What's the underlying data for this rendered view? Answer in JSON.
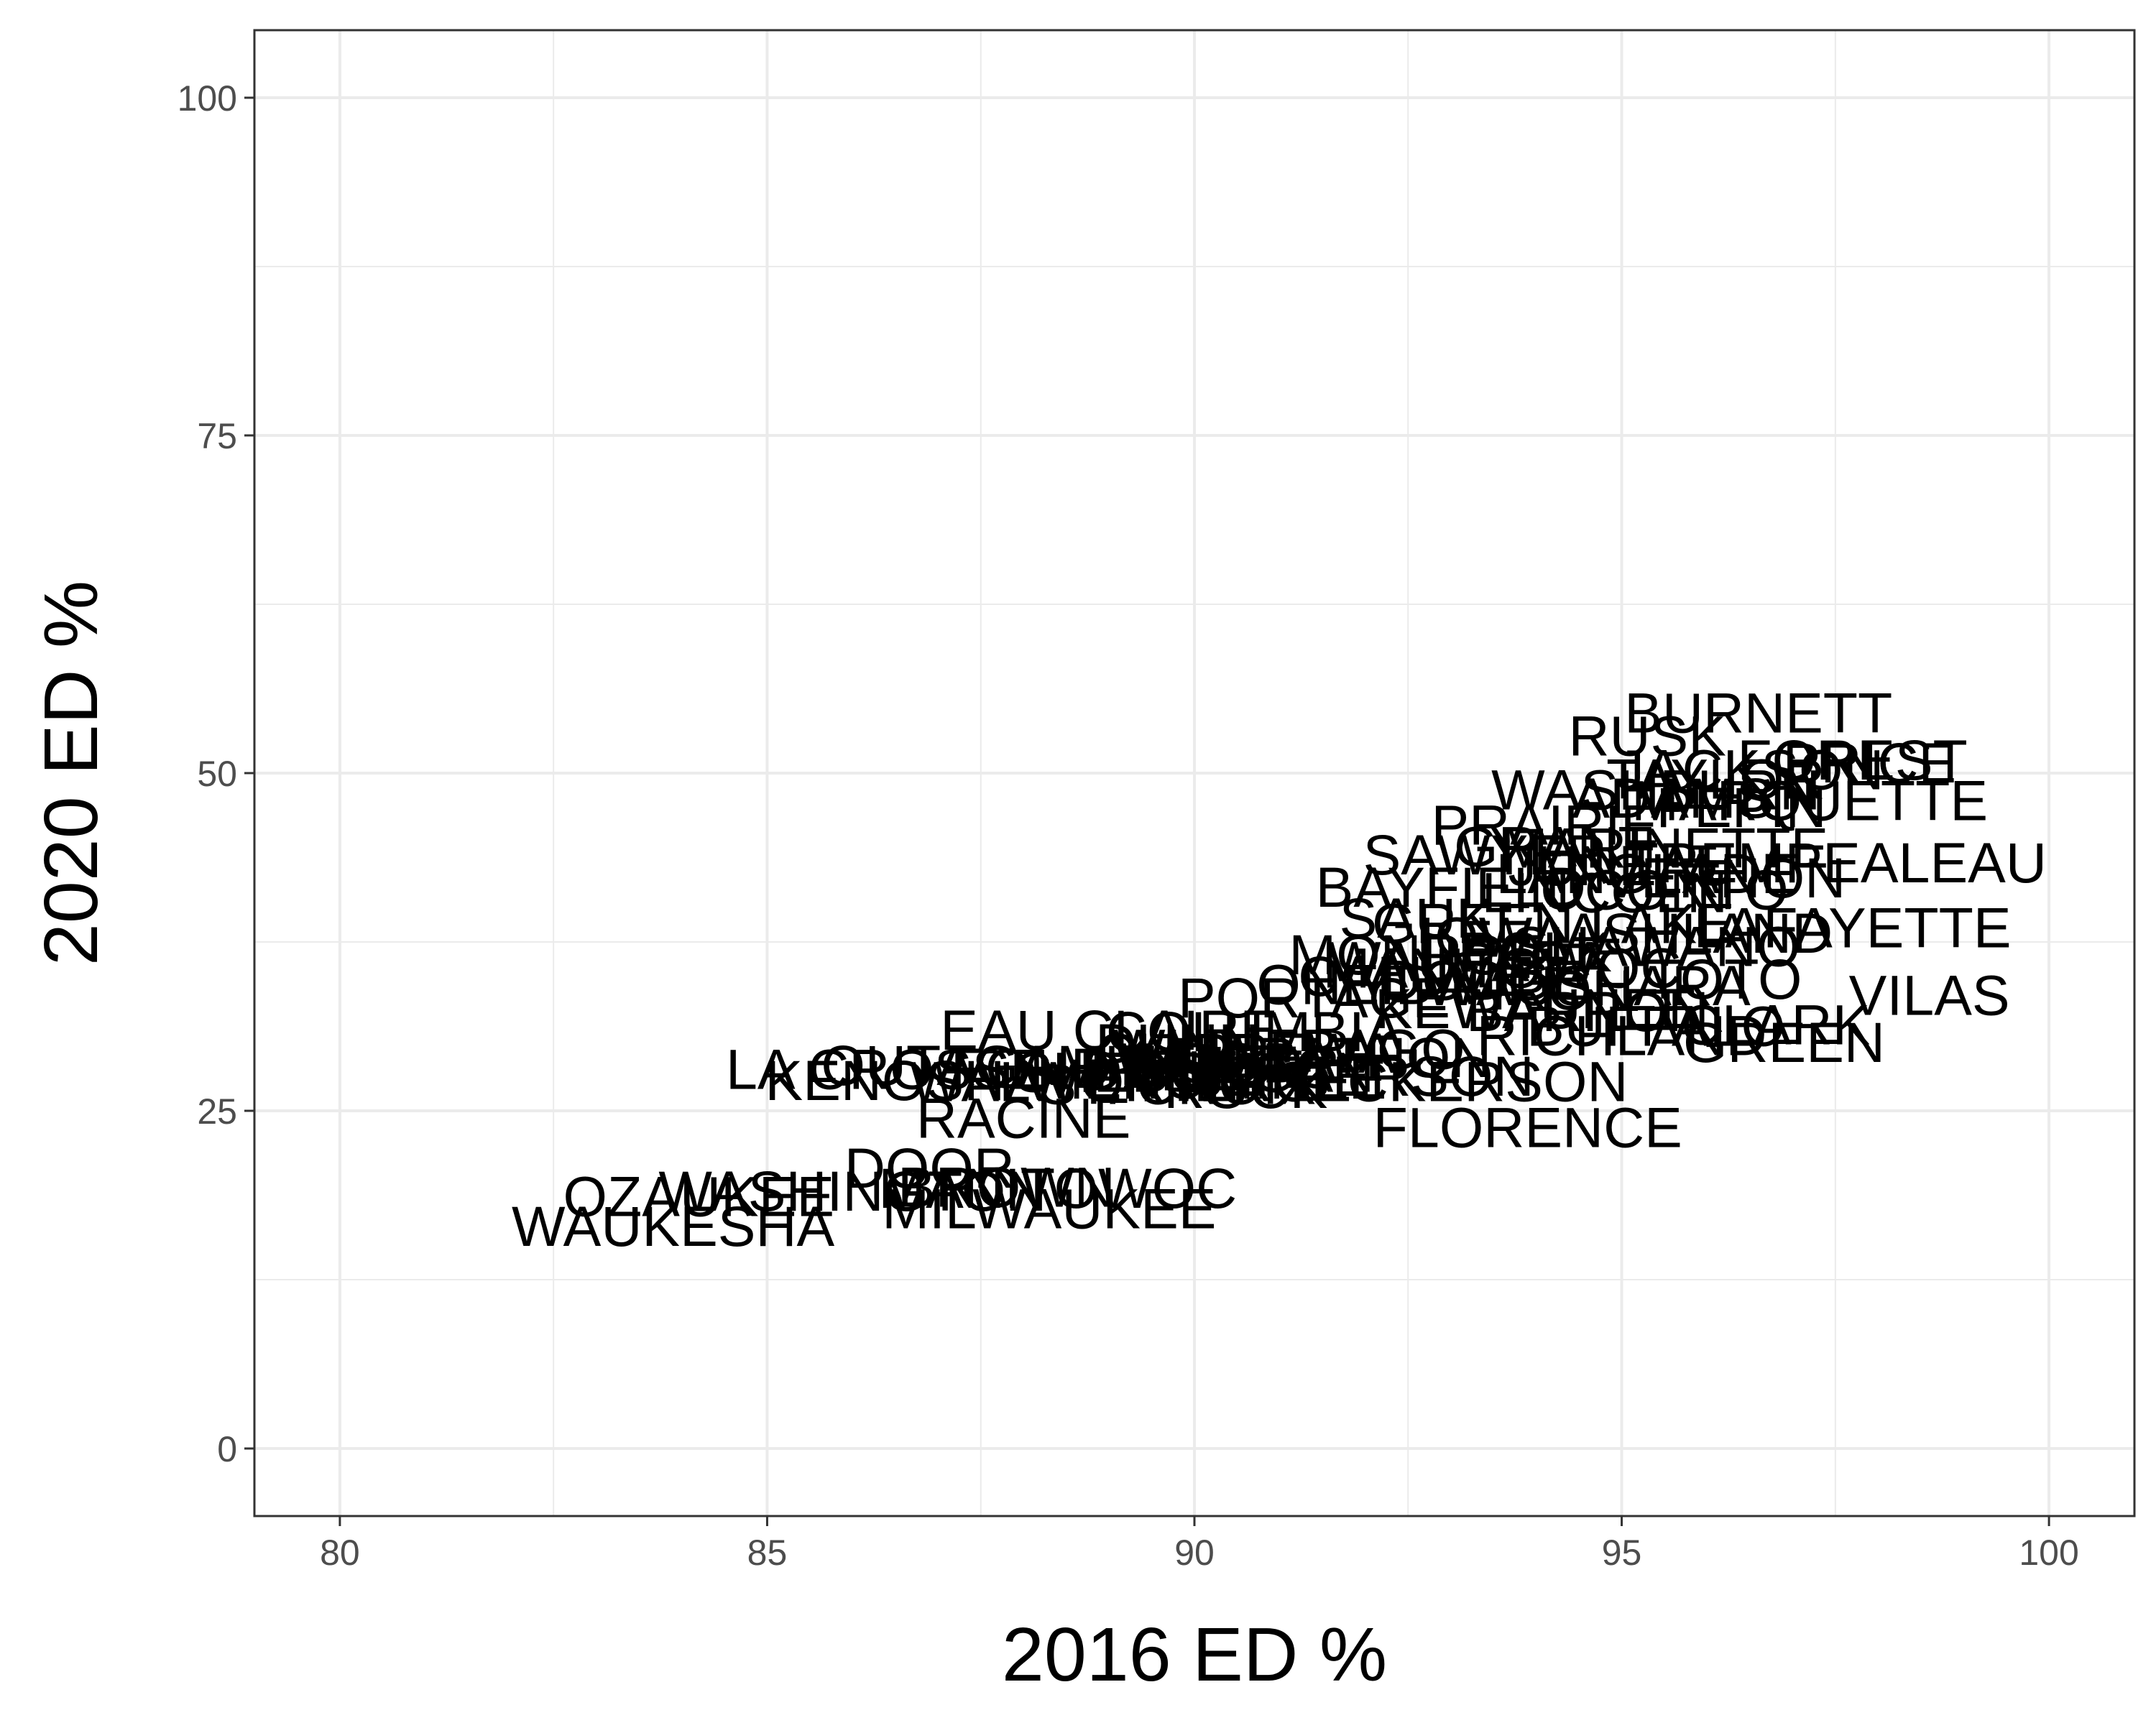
{
  "chart_data": {
    "type": "scatter",
    "mark": "text-labels",
    "xlabel": "2016 ED %",
    "ylabel": "2020 ED %",
    "xlim": [
      79,
      101
    ],
    "ylim": [
      -5,
      105
    ],
    "xticks": [
      80,
      85,
      90,
      95,
      100
    ],
    "yticks": [
      0,
      25,
      50,
      75,
      100
    ],
    "grid": true,
    "colors": {
      "background": "#ffffff",
      "grid": "#ebebeb",
      "panel_border": "#333333",
      "tick_label": "#4d4d4d",
      "text": "#000000"
    },
    "points": [
      {
        "label": "BURNETT",
        "x": 96.6,
        "y": 54.5
      },
      {
        "label": "RUSK",
        "x": 95.3,
        "y": 52.8
      },
      {
        "label": "FOREST",
        "x": 97.7,
        "y": 51.0
      },
      {
        "label": "PRICE",
        "x": 97.9,
        "y": 50.8
      },
      {
        "label": "JACKSON",
        "x": 96.5,
        "y": 50.3
      },
      {
        "label": "TAYLOR",
        "x": 96.1,
        "y": 49.6
      },
      {
        "label": "WASHBURN",
        "x": 95.4,
        "y": 48.8
      },
      {
        "label": "MARQUETTE",
        "x": 97.2,
        "y": 48.0
      },
      {
        "label": "ADAMS",
        "x": 95.6,
        "y": 48.2
      },
      {
        "label": "PEPIN",
        "x": 96.4,
        "y": 47.5
      },
      {
        "label": "PRAIRIE",
        "x": 94.1,
        "y": 46.2
      },
      {
        "label": "SAWYER",
        "x": 93.4,
        "y": 44.0
      },
      {
        "label": "MARINETTE",
        "x": 95.5,
        "y": 44.5
      },
      {
        "label": "GRANT",
        "x": 94.2,
        "y": 44.6
      },
      {
        "label": "JUNEAU",
        "x": 95.0,
        "y": 43.2
      },
      {
        "label": "LANGLADE",
        "x": 95.3,
        "y": 42.6
      },
      {
        "label": "TREMPEALEAU",
        "x": 97.5,
        "y": 43.4
      },
      {
        "label": "VERNON",
        "x": 96.2,
        "y": 42.3
      },
      {
        "label": "BAYFIELD",
        "x": 93.0,
        "y": 41.6
      },
      {
        "label": "LINCOLN",
        "x": 94.8,
        "y": 41.2
      },
      {
        "label": "OCONTO",
        "x": 95.5,
        "y": 41.4
      },
      {
        "label": "SAUK",
        "x": 92.6,
        "y": 39.3
      },
      {
        "label": "GREEN LAKE",
        "x": 94.2,
        "y": 38.9
      },
      {
        "label": "LAFAYETTE",
        "x": 97.7,
        "y": 38.6
      },
      {
        "label": "ASHLAND",
        "x": 95.9,
        "y": 38.2
      },
      {
        "label": "IOWA",
        "x": 93.5,
        "y": 37.9
      },
      {
        "label": "SHAWANO",
        "x": 95.4,
        "y": 37.2
      },
      {
        "label": "POLK",
        "x": 94.0,
        "y": 36.8
      },
      {
        "label": "MONROE",
        "x": 92.6,
        "y": 36.6
      },
      {
        "label": "WAUPACA",
        "x": 93.2,
        "y": 36.1
      },
      {
        "label": "MANITOWOC",
        "x": 93.6,
        "y": 35.6
      },
      {
        "label": "CALUMET",
        "x": 92.8,
        "y": 35.0
      },
      {
        "label": "DODGE",
        "x": 93.4,
        "y": 34.7
      },
      {
        "label": "WAUSHARA",
        "x": 94.6,
        "y": 34.3
      },
      {
        "label": "ONEIDA",
        "x": 92.0,
        "y": 34.4
      },
      {
        "label": "IRON",
        "x": 94.3,
        "y": 34.0
      },
      {
        "label": "PORTAGE",
        "x": 91.4,
        "y": 33.4
      },
      {
        "label": "KEWAUNEE",
        "x": 94.0,
        "y": 32.6
      },
      {
        "label": "BARRON",
        "x": 94.6,
        "y": 32.4
      },
      {
        "label": "TOTO",
        "x": 96.2,
        "y": 34.8
      },
      {
        "label": "VILAS",
        "x": 98.6,
        "y": 33.6
      },
      {
        "label": "BUFFALO",
        "x": 95.4,
        "y": 31.3
      },
      {
        "label": "CLARK",
        "x": 96.8,
        "y": 31.4
      },
      {
        "label": "RICHLAND",
        "x": 95.0,
        "y": 30.6
      },
      {
        "label": "GREEN",
        "x": 96.9,
        "y": 30.1
      },
      {
        "label": "EAU CLAIRE",
        "x": 89.0,
        "y": 31.0
      },
      {
        "label": "COLUMBIA",
        "x": 90.7,
        "y": 30.9
      },
      {
        "label": "DUNN",
        "x": 89.8,
        "y": 30.0
      },
      {
        "label": "WINNEBAGO",
        "x": 91.1,
        "y": 29.6
      },
      {
        "label": "CHIPPEWA",
        "x": 90.6,
        "y": 29.3
      },
      {
        "label": "MARATHON",
        "x": 91.6,
        "y": 29.0
      },
      {
        "label": "WOOD",
        "x": 90.2,
        "y": 28.6
      },
      {
        "label": "LA CROSSE",
        "x": 86.4,
        "y": 28.1
      },
      {
        "label": "OUTAGAMIE",
        "x": 87.6,
        "y": 28.4
      },
      {
        "label": "FOND DU LAC",
        "x": 89.4,
        "y": 28.2
      },
      {
        "label": "SHEBOYGAN",
        "x": 90.0,
        "y": 27.9
      },
      {
        "label": "DANE",
        "x": 89.6,
        "y": 28.0
      },
      {
        "label": "JEFFERSON",
        "x": 92.0,
        "y": 27.6
      },
      {
        "label": "MENOMINEE",
        "x": 90.2,
        "y": 27.4
      },
      {
        "label": "WALWORTH",
        "x": 88.6,
        "y": 27.2
      },
      {
        "label": "KENOSHA",
        "x": 86.6,
        "y": 27.3
      },
      {
        "label": "ST. CROIX",
        "x": 89.8,
        "y": 27.0
      },
      {
        "label": "PIERCE",
        "x": 90.6,
        "y": 27.2
      },
      {
        "label": "ROCK",
        "x": 90.6,
        "y": 26.7
      },
      {
        "label": "DICKERSON",
        "x": 93.1,
        "y": 27.2
      },
      {
        "label": "FLORENCE",
        "x": 93.9,
        "y": 23.8
      },
      {
        "label": "RACINE",
        "x": 88.0,
        "y": 24.5
      },
      {
        "label": "DOOR",
        "x": 86.9,
        "y": 20.8
      },
      {
        "label": "BROWN",
        "x": 87.8,
        "y": 19.4
      },
      {
        "label": "MANITOWOC-2",
        "x": 88.4,
        "y": 19.3
      },
      {
        "label": "WASHINGTON",
        "x": 86.0,
        "y": 19.1
      },
      {
        "label": "OZAUKEE",
        "x": 84.2,
        "y": 18.7
      },
      {
        "label": "MILWAUKEE",
        "x": 88.3,
        "y": 17.8
      },
      {
        "label": "WAUKESHA",
        "x": 83.9,
        "y": 16.5
      }
    ]
  }
}
